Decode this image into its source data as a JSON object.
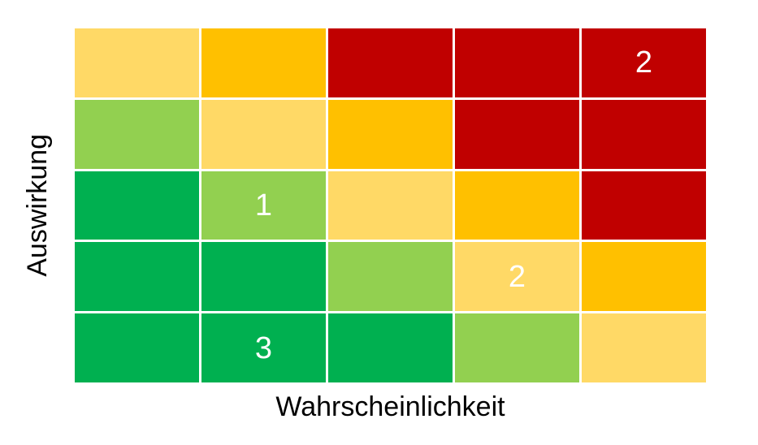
{
  "chart_data": {
    "type": "heatmap",
    "title": "",
    "xlabel": "Wahrscheinlichkeit",
    "ylabel": "Auswirkung",
    "rows": 5,
    "cols": 5,
    "legend_position": "none",
    "grid_gap_color": "#ffffff",
    "cell_value_color": "#ffffff",
    "axis_label_color": "#000000",
    "colors": {
      "green": "#00B050",
      "light_green": "#92D050",
      "yellow": "#FFD966",
      "orange": "#FFC000",
      "red": "#C00000"
    },
    "cells": [
      [
        {
          "color": "yellow",
          "value": ""
        },
        {
          "color": "orange",
          "value": ""
        },
        {
          "color": "red",
          "value": ""
        },
        {
          "color": "red",
          "value": ""
        },
        {
          "color": "red",
          "value": "2"
        }
      ],
      [
        {
          "color": "light_green",
          "value": ""
        },
        {
          "color": "yellow",
          "value": ""
        },
        {
          "color": "orange",
          "value": ""
        },
        {
          "color": "red",
          "value": ""
        },
        {
          "color": "red",
          "value": ""
        }
      ],
      [
        {
          "color": "green",
          "value": ""
        },
        {
          "color": "light_green",
          "value": "1"
        },
        {
          "color": "yellow",
          "value": ""
        },
        {
          "color": "orange",
          "value": ""
        },
        {
          "color": "red",
          "value": ""
        }
      ],
      [
        {
          "color": "green",
          "value": ""
        },
        {
          "color": "green",
          "value": ""
        },
        {
          "color": "light_green",
          "value": ""
        },
        {
          "color": "yellow",
          "value": "2"
        },
        {
          "color": "orange",
          "value": ""
        }
      ],
      [
        {
          "color": "green",
          "value": ""
        },
        {
          "color": "green",
          "value": "3"
        },
        {
          "color": "green",
          "value": ""
        },
        {
          "color": "light_green",
          "value": ""
        },
        {
          "color": "yellow",
          "value": ""
        }
      ]
    ]
  }
}
